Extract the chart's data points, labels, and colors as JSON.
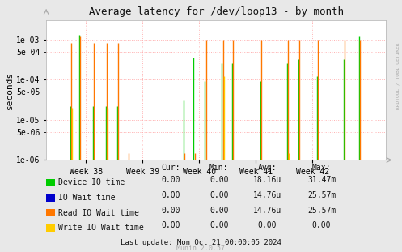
{
  "title": "Average latency for /dev/loop13 - by month",
  "ylabel": "seconds",
  "background_color": "#e8e8e8",
  "plot_background_color": "#ffffff",
  "grid_color": "#ffb0b0",
  "ylim_min": 1e-06,
  "ylim_max": 0.003,
  "xlim_min": 37.3,
  "xlim_max": 43.3,
  "week_labels": [
    "Week 38",
    "Week 39",
    "Week 40",
    "Week 41",
    "Week 42"
  ],
  "week_positions": [
    38,
    39,
    40,
    41,
    42
  ],
  "series": [
    {
      "name": "Device IO time",
      "color": "#00cc00",
      "data_x": [
        37.72,
        37.88,
        38.12,
        38.35,
        38.55,
        39.72,
        39.9,
        40.1,
        40.4,
        40.58,
        41.08,
        41.55,
        41.75,
        42.08,
        42.55,
        42.82
      ],
      "data_y": [
        2.2e-05,
        0.0013,
        2.2e-05,
        2.2e-05,
        2.2e-05,
        3e-05,
        0.00035,
        9e-05,
        0.00026,
        0.00026,
        9e-05,
        0.00025,
        0.00032,
        0.00012,
        0.00032,
        0.0012
      ]
    },
    {
      "name": "IO Wait time",
      "color": "#0000cc",
      "data_x": [],
      "data_y": []
    },
    {
      "name": "Read IO Wait time",
      "color": "#ff7700",
      "data_x": [
        37.74,
        37.9,
        38.14,
        38.37,
        38.57,
        38.75,
        39.74,
        39.92,
        40.12,
        40.42,
        40.6,
        41.1,
        41.57,
        41.77,
        42.1,
        42.57,
        42.84
      ],
      "data_y": [
        0.0008,
        0.0012,
        0.0008,
        0.0008,
        0.0008,
        1.5e-06,
        1.5e-06,
        1.5e-06,
        0.001,
        0.001,
        0.001,
        0.001,
        0.001,
        0.001,
        0.001,
        0.001,
        0.001
      ]
    },
    {
      "name": "Write IO Wait time",
      "color": "#ffcc00",
      "data_x": [
        37.76,
        38.39,
        40.44,
        41.59
      ],
      "data_y": [
        2e-05,
        2e-05,
        0.00012,
        1.5e-06
      ]
    }
  ],
  "legend_items": [
    {
      "label": "Device IO time",
      "color": "#00cc00"
    },
    {
      "label": "IO Wait time",
      "color": "#0000cc"
    },
    {
      "label": "Read IO Wait time",
      "color": "#ff7700"
    },
    {
      "label": "Write IO Wait time",
      "color": "#ffcc00"
    }
  ],
  "legend_stats": {
    "headers": [
      "Cur:",
      "Min:",
      "Avg:",
      "Max:"
    ],
    "rows": [
      [
        "0.00",
        "0.00",
        "18.16u",
        "31.47m"
      ],
      [
        "0.00",
        "0.00",
        "14.76u",
        "25.57m"
      ],
      [
        "0.00",
        "0.00",
        "14.76u",
        "25.57m"
      ],
      [
        "0.00",
        "0.00",
        "0.00",
        "0.00"
      ]
    ]
  },
  "footer": "Last update: Mon Oct 21 00:00:05 2024",
  "munin_version": "Munin 2.0.57",
  "rrdtool_label": "RRDTOOL / TOBI OETIKER"
}
